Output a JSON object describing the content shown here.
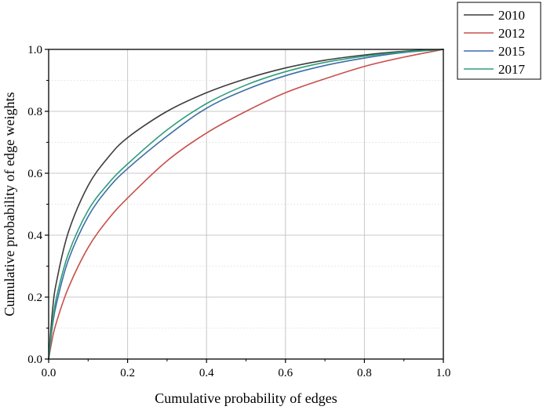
{
  "chart_data": {
    "type": "line",
    "title": "",
    "xlabel": "Cumulative probability of edges",
    "ylabel": "Cumulative probability of edge weights",
    "xlim": [
      0,
      1
    ],
    "ylim": [
      0,
      1
    ],
    "x_ticks": [
      "0.0",
      "0.2",
      "0.4",
      "0.6",
      "0.8",
      "1.0"
    ],
    "y_ticks": [
      "0.0",
      "0.2",
      "0.4",
      "0.6",
      "0.8",
      "1.0"
    ],
    "grid": true,
    "legend_position": "top-right-outside",
    "x": [
      0,
      0.01,
      0.02,
      0.05,
      0.1,
      0.15,
      0.2,
      0.3,
      0.4,
      0.5,
      0.6,
      0.7,
      0.8,
      0.9,
      1.0
    ],
    "series": [
      {
        "name": "2010",
        "color": "#3c3c3c",
        "values": [
          0,
          0.16,
          0.25,
          0.41,
          0.56,
          0.65,
          0.715,
          0.8,
          0.86,
          0.905,
          0.94,
          0.965,
          0.982,
          0.994,
          1.0
        ]
      },
      {
        "name": "2012",
        "color": "#c8504b",
        "values": [
          0,
          0.07,
          0.12,
          0.23,
          0.36,
          0.45,
          0.52,
          0.64,
          0.73,
          0.8,
          0.86,
          0.905,
          0.945,
          0.975,
          1.0
        ]
      },
      {
        "name": "2015",
        "color": "#3c6ea8",
        "values": [
          0,
          0.11,
          0.18,
          0.32,
          0.46,
          0.55,
          0.615,
          0.72,
          0.81,
          0.87,
          0.915,
          0.948,
          0.972,
          0.99,
          1.0
        ]
      },
      {
        "name": "2017",
        "color": "#2e9e7a",
        "values": [
          0,
          0.12,
          0.2,
          0.34,
          0.48,
          0.565,
          0.63,
          0.74,
          0.825,
          0.885,
          0.928,
          0.958,
          0.978,
          0.992,
          1.0
        ]
      }
    ]
  }
}
